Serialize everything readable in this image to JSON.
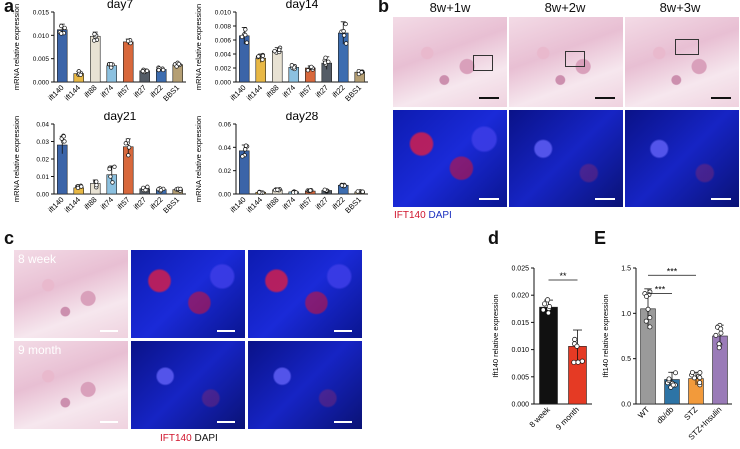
{
  "panels": {
    "a": "a",
    "b": "b",
    "c": "c",
    "d": "d",
    "e": "E"
  },
  "panel_b": {
    "titles": [
      "8w+1w",
      "8w+2w",
      "8w+3w"
    ],
    "legend_red": "IFT140",
    "legend_blue": "DAPI"
  },
  "panel_c": {
    "row_labels": [
      "8 week",
      "9 month"
    ],
    "legend_red": "IFT140",
    "legend_blue": "DAPI"
  },
  "colors": {
    "ift140": "#3b64a8",
    "ift144": "#e8b845",
    "ift88": "#e8e2d3",
    "ift74": "#8cc1e0",
    "ift57": "#d8683c",
    "ift27": "#545c66",
    "ift22": "#3d6db0",
    "bbs1": "#b59f74",
    "week8": "#111111",
    "month9": "#e53a24",
    "wt": "#9a9a9a",
    "dbdb": "#2d74a6",
    "stz": "#f29a3b",
    "stzins": "#9a7bb8"
  },
  "chart_data": [
    {
      "id": "day7",
      "type": "bar",
      "title": "day7",
      "ylabel": "mRNA relative expression",
      "ylim": [
        0,
        0.015
      ],
      "yticks": [
        "0.000",
        "0.005",
        "0.010",
        "0.015"
      ],
      "categories": [
        "ift140",
        "ift144",
        "ift88",
        "ift74",
        "ift57",
        "ift27",
        "ift22",
        "BBS1"
      ],
      "values": [
        0.0112,
        0.0018,
        0.0098,
        0.0035,
        0.0086,
        0.0024,
        0.0027,
        0.0037
      ],
      "errors": [
        0.0012,
        0.0005,
        0.0009,
        0.0004,
        0.0006,
        0.0004,
        0.0004,
        0.0004
      ]
    },
    {
      "id": "day14",
      "type": "bar",
      "title": "day14",
      "ylabel": "mRNA relative expression",
      "ylim": [
        0,
        0.01
      ],
      "yticks": [
        "0.000",
        "0.002",
        "0.004",
        "0.006",
        "0.008",
        "0.010"
      ],
      "categories": [
        "ift140",
        "ift144",
        "ift88",
        "ift74",
        "ift57",
        "ift27",
        "ift22",
        "BBS1"
      ],
      "values": [
        0.0066,
        0.0034,
        0.0044,
        0.0021,
        0.002,
        0.0027,
        0.007,
        0.0014
      ],
      "errors": [
        0.0012,
        0.0006,
        0.0005,
        0.0003,
        0.0003,
        0.0009,
        0.0016,
        0.0003
      ]
    },
    {
      "id": "day21",
      "type": "bar",
      "title": "day21",
      "ylabel": "mRNA relative expression",
      "ylim": [
        0,
        0.04
      ],
      "yticks": [
        "0.00",
        "0.01",
        "0.02",
        "0.03",
        "0.04"
      ],
      "categories": [
        "ift140",
        "ift144",
        "ift88",
        "ift74",
        "ift57",
        "ift27",
        "ift22",
        "BBS1"
      ],
      "values": [
        0.028,
        0.0035,
        0.006,
        0.011,
        0.027,
        0.003,
        0.0025,
        0.0025
      ],
      "errors": [
        0.005,
        0.0012,
        0.002,
        0.005,
        0.0045,
        0.001,
        0.0008,
        0.0008
      ]
    },
    {
      "id": "day28",
      "type": "bar",
      "title": "day28",
      "ylabel": "mRNA relative expression",
      "ylim": [
        0,
        0.06
      ],
      "yticks": [
        "0.00",
        "0.02",
        "0.04",
        "0.06"
      ],
      "categories": [
        "ift140",
        "ift144",
        "ift88",
        "ift74",
        "ift57",
        "ift27",
        "ift22",
        "BBS1"
      ],
      "values": [
        0.037,
        0.0015,
        0.0035,
        0.0018,
        0.0025,
        0.003,
        0.0075,
        0.0018
      ],
      "errors": [
        0.005,
        0.0005,
        0.0008,
        0.0005,
        0.0006,
        0.0008,
        0.001,
        0.0005
      ]
    },
    {
      "id": "d",
      "type": "bar",
      "title": "",
      "ylabel": "Ift140 relative expression",
      "ylim": [
        0,
        0.025
      ],
      "yticks": [
        "0.000",
        "0.005",
        "0.010",
        "0.015",
        "0.020",
        "0.025"
      ],
      "categories": [
        "8 week",
        "9 month"
      ],
      "values": [
        0.0178,
        0.0106
      ],
      "errors": [
        0.0013,
        0.003
      ],
      "significance": "**"
    },
    {
      "id": "e",
      "type": "bar",
      "title": "",
      "ylabel": "Ift140 relative expression",
      "ylim": [
        0,
        1.5
      ],
      "yticks": [
        "0.0",
        "0.5",
        "1.0",
        "1.5"
      ],
      "categories": [
        "WT",
        "db/db",
        "STZ",
        "STZ+Insulin"
      ],
      "values": [
        1.05,
        0.27,
        0.28,
        0.75
      ],
      "errors": [
        0.22,
        0.08,
        0.07,
        0.12
      ],
      "significance": [
        "***",
        "***"
      ]
    }
  ]
}
